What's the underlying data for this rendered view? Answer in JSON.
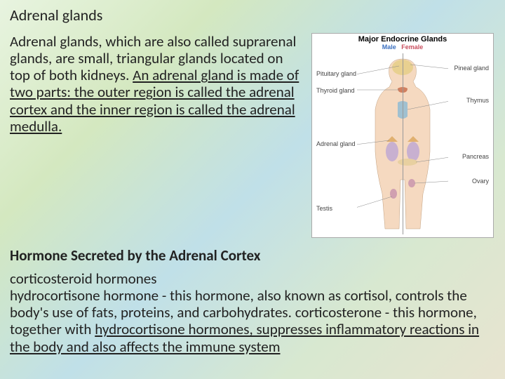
{
  "title": "Adrenal glands",
  "intro_html": "Adrenal glands, which are also called suprarenal glands, are small, triangular glands located on top of both kidneys. <span class='ul'>An adrenal gland is made of two parts: the outer region is called the adrenal cortex and the inner region is called the adrenal medulla.</span>",
  "subtitle": "Hormone Secreted by the Adrenal Cortex",
  "hormones_html": "corticosteroid hormones<br>hydrocortisone hormone - this hormone, also known as cortisol, controls the body's use of fats, proteins, and carbohydrates. corticosterone - this hormone, together with <span class='ul'>hydrocortisone hormones, suppresses inflammatory reactions in the body and also affects the immune system</span>",
  "diagram": {
    "title": "Major Endocrine Glands",
    "male": "Male",
    "female": "Female",
    "labels": {
      "pituitary": "Pituitary gland",
      "pineal": "Pineal gland",
      "thyroid": "Thyroid gland",
      "thymus": "Thymus",
      "adrenal": "Adrenal gland",
      "pancreas": "Pancreas",
      "ovary": "Ovary",
      "testis": "Testis"
    },
    "colors": {
      "skin": "#f5d9c0",
      "brain": "#e8d090",
      "thyroid": "#d08060",
      "thymus": "#a0c0d0",
      "adrenal": "#e0b070",
      "kidney": "#c8b0d0",
      "pancreas": "#e8d0a0",
      "gonad": "#d0a0b0"
    }
  }
}
